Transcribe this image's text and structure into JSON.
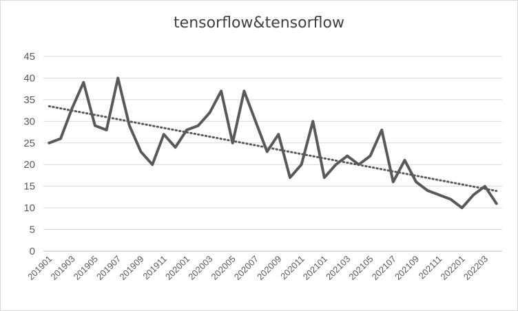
{
  "chart_data": {
    "type": "line",
    "title": "tensorflow&tensorflow",
    "xlabel": "",
    "ylabel": "",
    "ylim": [
      0,
      45
    ],
    "yticks": [
      0,
      5,
      10,
      15,
      20,
      25,
      30,
      35,
      40,
      45
    ],
    "grid": "horizontal",
    "x": [
      "201901",
      "201902",
      "201903",
      "201904",
      "201905",
      "201906",
      "201907",
      "201908",
      "201909",
      "201910",
      "201911",
      "201912",
      "202001",
      "202002",
      "202003",
      "202004",
      "202005",
      "202006",
      "202007",
      "202008",
      "202009",
      "202010",
      "202011",
      "202012",
      "202101",
      "202102",
      "202103",
      "202104",
      "202105",
      "202106",
      "202107",
      "202108",
      "202109",
      "202110",
      "202111",
      "202112",
      "202201",
      "202202",
      "202203",
      "202204"
    ],
    "xtick_labels": [
      "201901",
      "201903",
      "201905",
      "201907",
      "201909",
      "201911",
      "202001",
      "202003",
      "202005",
      "202007",
      "202009",
      "202011",
      "202101",
      "202103",
      "202105",
      "202107",
      "202109",
      "202111",
      "202201",
      "202203"
    ],
    "series": [
      {
        "values": [
          25,
          26,
          33,
          39,
          29,
          28,
          40,
          29,
          23,
          20,
          27,
          24,
          28,
          29,
          32,
          37,
          25,
          37,
          30,
          23,
          27,
          17,
          20,
          30,
          17,
          20,
          22,
          20,
          22,
          28,
          16,
          21,
          16,
          14,
          13,
          12,
          10,
          13,
          15,
          11
        ],
        "color": "#595959"
      }
    ],
    "trendline": {
      "type": "linear",
      "style": "dotted",
      "color": "#595959"
    }
  }
}
